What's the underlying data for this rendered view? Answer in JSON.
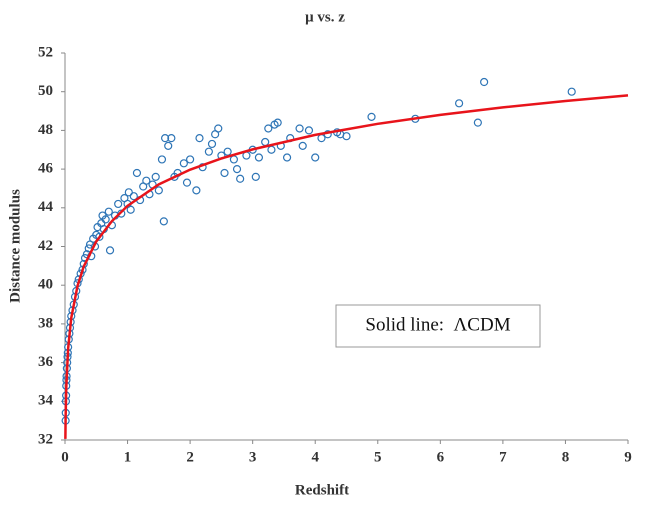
{
  "chart_data": {
    "type": "scatter",
    "title": "μ vs. z",
    "x_label": "Redshift",
    "y_label": "Distance modulus",
    "annotation": "Solid line:  ΛCDM",
    "xlim": [
      0,
      9
    ],
    "xticks": [
      0,
      1,
      2,
      3,
      4,
      5,
      6,
      7,
      8,
      9
    ],
    "ylim": [
      32,
      52
    ],
    "yticks": [
      32,
      34,
      36,
      38,
      40,
      42,
      44,
      46,
      48,
      50,
      52
    ],
    "grid": false,
    "series": [
      {
        "type": "scatter",
        "color": "#2e75b6",
        "x": [
          0.01,
          0.012,
          0.015,
          0.018,
          0.02,
          0.023,
          0.025,
          0.03,
          0.035,
          0.04,
          0.045,
          0.05,
          0.06,
          0.07,
          0.08,
          0.09,
          0.1,
          0.12,
          0.14,
          0.16,
          0.18,
          0.2,
          0.22,
          0.25,
          0.28,
          0.3,
          0.32,
          0.35,
          0.38,
          0.4,
          0.42,
          0.45,
          0.48,
          0.5,
          0.52,
          0.55,
          0.58,
          0.6,
          0.62,
          0.65,
          0.7,
          0.72,
          0.75,
          0.8,
          0.85,
          0.9,
          0.95,
          1.0,
          1.02,
          1.05,
          1.1,
          1.15,
          1.2,
          1.25,
          1.3,
          1.35,
          1.4,
          1.45,
          1.5,
          1.55,
          1.58,
          1.6,
          1.65,
          1.7,
          1.75,
          1.8,
          1.9,
          1.95,
          2.0,
          2.1,
          2.15,
          2.2,
          2.3,
          2.35,
          2.4,
          2.45,
          2.5,
          2.55,
          2.6,
          2.7,
          2.75,
          2.8,
          2.9,
          3.0,
          3.05,
          3.1,
          3.2,
          3.25,
          3.3,
          3.35,
          3.4,
          3.45,
          3.55,
          3.6,
          3.75,
          3.8,
          3.9,
          4.0,
          4.1,
          4.2,
          4.35,
          4.4,
          4.5,
          4.9,
          5.6,
          6.3,
          6.6,
          6.7,
          8.1
        ],
        "values": [
          33.0,
          33.4,
          34.0,
          34.3,
          34.8,
          35.1,
          35.3,
          35.7,
          36.0,
          36.3,
          36.5,
          36.8,
          37.2,
          37.5,
          37.8,
          38.1,
          38.4,
          38.7,
          39.0,
          39.4,
          39.7,
          40.1,
          40.3,
          40.6,
          40.8,
          41.1,
          41.4,
          41.6,
          41.9,
          42.1,
          41.5,
          42.4,
          42.0,
          42.6,
          43.0,
          42.5,
          43.2,
          43.6,
          42.9,
          43.4,
          43.8,
          41.8,
          43.1,
          43.6,
          44.2,
          43.7,
          44.5,
          44.2,
          44.8,
          43.9,
          44.6,
          45.8,
          44.4,
          45.1,
          45.4,
          44.7,
          45.2,
          45.6,
          44.9,
          46.5,
          43.3,
          47.6,
          47.2,
          47.6,
          45.6,
          45.8,
          46.3,
          45.3,
          46.5,
          44.9,
          47.6,
          46.1,
          46.9,
          47.3,
          47.8,
          48.1,
          46.7,
          45.8,
          46.9,
          46.5,
          46.0,
          45.5,
          46.7,
          47.0,
          45.6,
          46.6,
          47.4,
          48.1,
          47.0,
          48.3,
          48.4,
          47.2,
          46.6,
          47.6,
          48.1,
          47.2,
          48.0,
          46.6,
          47.6,
          47.8,
          47.9,
          47.8,
          47.7,
          48.7,
          48.6,
          49.4,
          48.4,
          50.5,
          50.0
        ]
      },
      {
        "type": "line",
        "color": "#e8141b",
        "x": [
          0.006,
          0.01,
          0.02,
          0.05,
          0.1,
          0.2,
          0.3,
          0.5,
          0.75,
          1.0,
          1.5,
          2.0,
          2.5,
          3.0,
          4.0,
          5.0,
          6.0,
          7.0,
          8.0,
          9.0
        ],
        "values": [
          32.06,
          33.18,
          34.7,
          36.73,
          38.31,
          39.96,
          40.97,
          42.26,
          43.31,
          44.1,
          45.21,
          45.97,
          46.55,
          47.02,
          47.77,
          48.34,
          48.8,
          49.19,
          49.52,
          49.81
        ]
      }
    ]
  }
}
